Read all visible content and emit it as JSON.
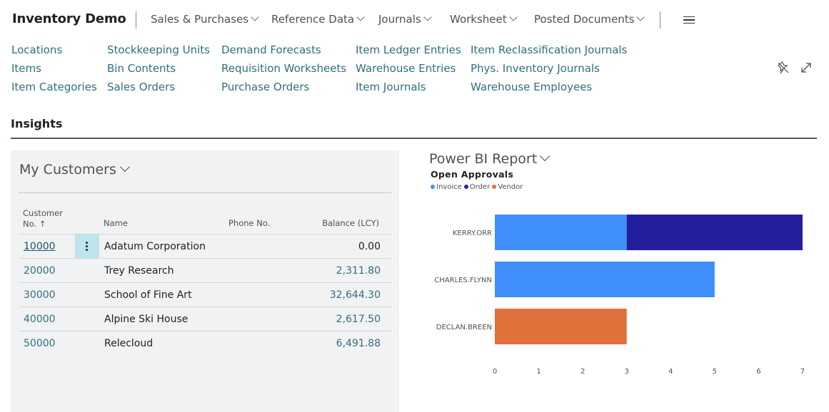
{
  "app": {
    "title": "Inventory Demo"
  },
  "menu": [
    {
      "label": "Sales & Purchases"
    },
    {
      "label": "Reference Data"
    },
    {
      "label": "Journals"
    },
    {
      "label": "Worksheet"
    },
    {
      "label": "Posted Documents"
    }
  ],
  "nav_links": {
    "col1": [
      "Locations",
      "Items",
      "Item Categories"
    ],
    "col2": [
      "Stockkeeping Units",
      "Bin Contents",
      "Sales Orders"
    ],
    "col3": [
      "Demand Forecasts",
      "Requisition Worksheets",
      "Purchase Orders"
    ],
    "col4": [
      "Item Ledger Entries",
      "Warehouse Entries",
      "Item Journals"
    ],
    "col5": [
      "Item Reclassification Journals",
      "Phys. Inventory Journals",
      "Warehouse Employees"
    ]
  },
  "icons": {
    "pin": "pin-off-icon",
    "expand": "expand-icon",
    "menu": "hamburger-icon"
  },
  "insights": {
    "heading": "Insights"
  },
  "customers": {
    "title": "My Customers",
    "columns": {
      "no_line1": "Customer",
      "no_line2": "No. ↑",
      "name": "Name",
      "phone": "Phone No.",
      "balance": "Balance (LCY)"
    },
    "rows": [
      {
        "no": "10000",
        "name": "Adatum Corporation",
        "phone": "",
        "balance": "0.00"
      },
      {
        "no": "20000",
        "name": "Trey Research",
        "phone": "",
        "balance": "2,311.80"
      },
      {
        "no": "30000",
        "name": "School of Fine Art",
        "phone": "",
        "balance": "32,644.30"
      },
      {
        "no": "40000",
        "name": "Alpine Ski House",
        "phone": "",
        "balance": "2,617.50"
      },
      {
        "no": "50000",
        "name": "Relecloud",
        "phone": "",
        "balance": "6,491.88"
      }
    ]
  },
  "powerbi": {
    "title": "Power BI Report"
  },
  "chart_data": {
    "type": "bar",
    "orientation": "horizontal",
    "stacked": true,
    "title": "Open Approvals",
    "categories": [
      "KERRY.ORR",
      "CHARLES.FLYNN",
      "DECLAN.BREEN"
    ],
    "series": [
      {
        "name": "Invoice",
        "color": "#3f8efc",
        "values": [
          3,
          5,
          0
        ]
      },
      {
        "name": "Order",
        "color": "#231f9c",
        "values": [
          4,
          0,
          0
        ]
      },
      {
        "name": "Vendor",
        "color": "#e0713a",
        "values": [
          0,
          0,
          3
        ]
      }
    ],
    "xlim": [
      0,
      7
    ],
    "xticks": [
      "0",
      "1",
      "2",
      "3",
      "4",
      "5",
      "6",
      "7"
    ],
    "legend_position": "top-left",
    "grid": false
  }
}
